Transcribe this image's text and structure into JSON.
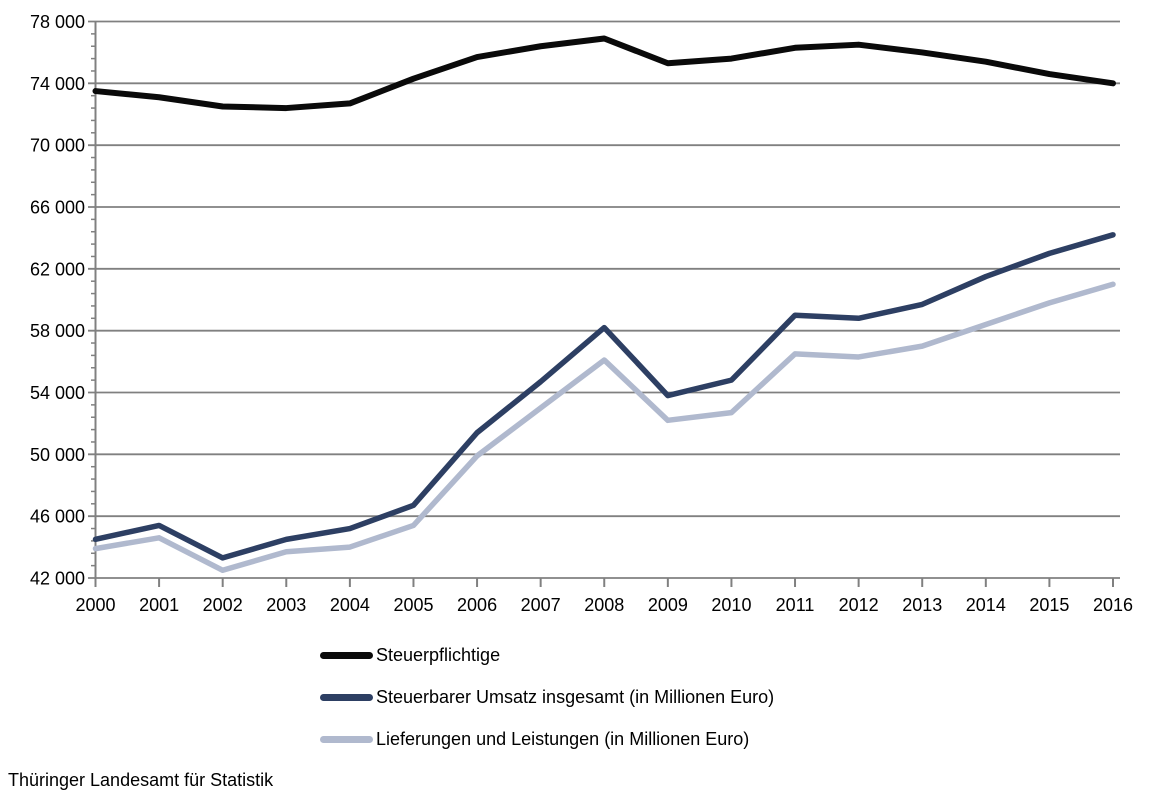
{
  "chart_data": {
    "type": "line",
    "categories": [
      "2000",
      "2001",
      "2002",
      "2003",
      "2004",
      "2005",
      "2006",
      "2007",
      "2008",
      "2009",
      "2010",
      "2011",
      "2012",
      "2013",
      "2014",
      "2015",
      "2016"
    ],
    "series": [
      {
        "name": "Steuerpflichtige",
        "color": "#0a0a0a",
        "values": [
          73500,
          73100,
          72500,
          72400,
          72700,
          74300,
          75700,
          76400,
          76900,
          75300,
          75600,
          76300,
          76500,
          76000,
          75400,
          74600,
          74000
        ]
      },
      {
        "name": "Steuerbarer Umsatz insgesamt (in Millionen Euro)",
        "color": "#2d3f63",
        "values": [
          44500,
          45400,
          43300,
          44500,
          45200,
          46700,
          51400,
          54700,
          58200,
          53800,
          54800,
          59000,
          58800,
          59700,
          61500,
          63000,
          64200
        ]
      },
      {
        "name": "Lieferungen und Leistungen (in Millionen Euro)",
        "color": "#b0b9ce",
        "values": [
          43900,
          44600,
          42500,
          43700,
          44000,
          45400,
          49900,
          53000,
          56100,
          52200,
          52700,
          56500,
          56300,
          57000,
          58400,
          59800,
          61000
        ]
      }
    ],
    "ylim": [
      42000,
      78000
    ],
    "y_major_step": 4000,
    "y_minor_step": 800,
    "y_tick_labels": [
      "42 000",
      "46 000",
      "50 000",
      "54 000",
      "58 000",
      "62 000",
      "66 000",
      "70 000",
      "74 000",
      "78 000"
    ],
    "xlabel": "",
    "ylabel": "",
    "grid": true,
    "legend_position": "bottom-left"
  },
  "source": "Thüringer Landesamt für Statistik",
  "colors": {
    "grid": "#808080",
    "axis": "#808080",
    "label": "#000000",
    "background": "#ffffff"
  }
}
